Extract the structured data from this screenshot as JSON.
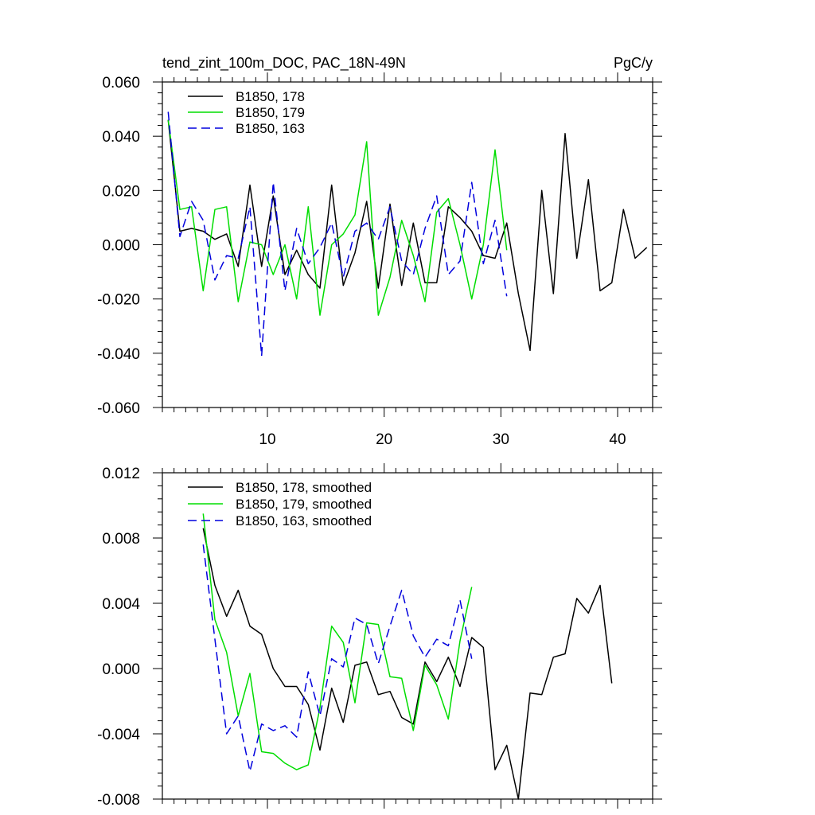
{
  "chart_data": [
    {
      "type": "line",
      "title": "tend_zint_100m_DOC, PAC_18N-49N",
      "units": "PgC/y",
      "xlim": [
        1,
        43
      ],
      "ylim": [
        -0.06,
        0.06
      ],
      "x_ticks": [
        10,
        20,
        30,
        40
      ],
      "x_tick_labels": [
        "10",
        "20",
        "30",
        "40"
      ],
      "y_ticks": [
        -0.06,
        -0.04,
        -0.02,
        0.0,
        0.02,
        0.04,
        0.06
      ],
      "y_tick_labels": [
        "-0.060",
        "-0.040",
        "-0.020",
        "0.000",
        "0.020",
        "0.040",
        "0.060"
      ],
      "grid": false,
      "legend_position": "top-left",
      "series": [
        {
          "name": "B1850, 178",
          "color": "#000000",
          "dash": "solid",
          "x": [
            1.5,
            2.5,
            3.5,
            4.5,
            5.5,
            6.5,
            7.5,
            8.5,
            9.5,
            10.5,
            11.5,
            12.5,
            13.5,
            14.5,
            15.5,
            16.5,
            17.5,
            18.5,
            19.5,
            20.5,
            21.5,
            22.5,
            23.5,
            24.5,
            25.5,
            26.5,
            27.5,
            28.5,
            29.5,
            30.5,
            31.5,
            32.5,
            33.5,
            34.5,
            35.5,
            36.5,
            37.5,
            38.5,
            39.5,
            40.5,
            41.5,
            42.5
          ],
          "y": [
            0.046,
            0.005,
            0.006,
            0.005,
            0.002,
            0.004,
            -0.008,
            0.022,
            -0.008,
            0.018,
            -0.011,
            -0.002,
            -0.011,
            -0.016,
            0.022,
            -0.015,
            -0.003,
            0.016,
            -0.016,
            0.015,
            -0.015,
            0.008,
            -0.014,
            -0.014,
            0.014,
            0.01,
            0.005,
            -0.004,
            -0.005,
            0.008,
            -0.018,
            -0.039,
            0.02,
            -0.018,
            0.041,
            -0.005,
            0.024,
            -0.017,
            -0.014,
            0.013,
            -0.005,
            -0.001
          ]
        },
        {
          "name": "B1850, 179",
          "color": "#00dd00",
          "dash": "solid",
          "x": [
            1.5,
            2.5,
            3.5,
            4.5,
            5.5,
            6.5,
            7.5,
            8.5,
            9.5,
            10.5,
            11.5,
            12.5,
            13.5,
            14.5,
            15.5,
            16.5,
            17.5,
            18.5,
            19.5,
            20.5,
            21.5,
            22.5,
            23.5,
            24.5,
            25.5,
            26.5,
            27.5,
            28.5,
            29.5,
            30.5
          ],
          "y": [
            0.046,
            0.013,
            0.014,
            -0.017,
            0.013,
            0.014,
            -0.021,
            0.001,
            0.0,
            -0.011,
            0.0,
            -0.02,
            0.014,
            -0.026,
            0.0,
            0.004,
            0.011,
            0.038,
            -0.026,
            -0.012,
            0.009,
            -0.004,
            -0.021,
            0.012,
            0.017,
            0.0,
            -0.02,
            0.0,
            0.035,
            -0.002
          ]
        },
        {
          "name": "B1850, 163",
          "color": "#0000dd",
          "dash": "dashed",
          "x": [
            1.5,
            2.5,
            3.5,
            4.5,
            5.5,
            6.5,
            7.5,
            8.5,
            9.5,
            10.5,
            11.5,
            12.5,
            13.5,
            14.5,
            15.5,
            16.5,
            17.5,
            18.5,
            19.5,
            20.5,
            21.5,
            22.5,
            23.5,
            24.5,
            25.5,
            26.5,
            27.5,
            28.5,
            29.5,
            30.5
          ],
          "y": [
            0.049,
            0.003,
            0.016,
            0.009,
            -0.013,
            -0.004,
            -0.005,
            0.014,
            -0.041,
            0.023,
            -0.017,
            0.006,
            -0.007,
            -0.001,
            0.008,
            -0.012,
            0.005,
            0.008,
            0.002,
            0.014,
            -0.006,
            -0.011,
            0.006,
            0.018,
            -0.011,
            -0.006,
            0.023,
            -0.007,
            0.009,
            -0.019
          ]
        }
      ]
    },
    {
      "type": "line",
      "xlim": [
        1,
        43
      ],
      "ylim": [
        -0.008,
        0.012
      ],
      "x_ticks": [
        10,
        20,
        30,
        40
      ],
      "y_ticks": [
        -0.008,
        -0.004,
        0.0,
        0.004,
        0.008,
        0.012
      ],
      "y_tick_labels": [
        "-0.008",
        "-0.004",
        "0.000",
        "0.004",
        "0.008",
        "0.012"
      ],
      "grid": false,
      "legend_position": "top-left",
      "series": [
        {
          "name": "B1850, 178, smoothed",
          "color": "#000000",
          "dash": "solid",
          "x": [
            4.5,
            5.5,
            6.5,
            7.5,
            8.5,
            9.5,
            10.5,
            11.5,
            12.5,
            13.5,
            14.5,
            15.5,
            16.5,
            17.5,
            18.5,
            19.5,
            20.5,
            21.5,
            22.5,
            23.5,
            24.5,
            25.5,
            26.5,
            27.5,
            28.5,
            29.5,
            30.5,
            31.5,
            32.5,
            33.5,
            34.5,
            35.5,
            36.5,
            37.5,
            38.5,
            39.5
          ],
          "y": [
            0.0086,
            0.0051,
            0.0032,
            0.0048,
            0.0026,
            0.0021,
            0.0,
            -0.0011,
            -0.0011,
            -0.0022,
            -0.005,
            -0.0012,
            -0.0033,
            0.0002,
            0.0004,
            -0.0016,
            -0.0014,
            -0.003,
            -0.0034,
            0.0004,
            -0.0008,
            0.0007,
            -0.0011,
            0.0019,
            0.0013,
            -0.0062,
            -0.0047,
            -0.008,
            -0.0015,
            -0.0016,
            0.0007,
            0.0009,
            0.0043,
            0.0034,
            0.0051,
            -0.0009
          ]
        },
        {
          "name": "B1850, 179, smoothed",
          "color": "#00dd00",
          "dash": "solid",
          "x": [
            4.5,
            5.5,
            6.5,
            7.5,
            8.5,
            9.5,
            10.5,
            11.5,
            12.5,
            13.5,
            14.5,
            15.5,
            16.5,
            17.5,
            18.5,
            19.5,
            20.5,
            21.5,
            22.5,
            23.5,
            24.5,
            25.5,
            26.5,
            27.5
          ],
          "y": [
            0.0095,
            0.003,
            0.001,
            -0.0029,
            -0.0003,
            -0.0051,
            -0.0052,
            -0.0058,
            -0.0062,
            -0.0059,
            -0.0024,
            0.0026,
            0.0016,
            -0.0021,
            0.0028,
            0.0027,
            -0.0005,
            -0.0006,
            -0.0038,
            0.0002,
            -0.001,
            -0.0031,
            0.0017,
            0.005
          ]
        },
        {
          "name": "B1850, 163, smoothed",
          "color": "#0000dd",
          "dash": "dashed",
          "x": [
            4.5,
            5.5,
            6.5,
            7.5,
            8.5,
            9.5,
            10.5,
            11.5,
            12.5,
            13.5,
            14.5,
            15.5,
            16.5,
            17.5,
            18.5,
            19.5,
            20.5,
            21.5,
            22.5,
            23.5,
            24.5,
            25.5,
            26.5,
            27.5
          ],
          "y": [
            0.0076,
            0.0018,
            -0.004,
            -0.0029,
            -0.0063,
            -0.0034,
            -0.0038,
            -0.0035,
            -0.0042,
            -0.0002,
            -0.0029,
            0.0006,
            0.0001,
            0.0031,
            0.0027,
            0.0003,
            0.0026,
            0.0048,
            0.002,
            0.0007,
            0.0018,
            0.0014,
            0.0042,
            0.0006
          ]
        }
      ]
    }
  ]
}
